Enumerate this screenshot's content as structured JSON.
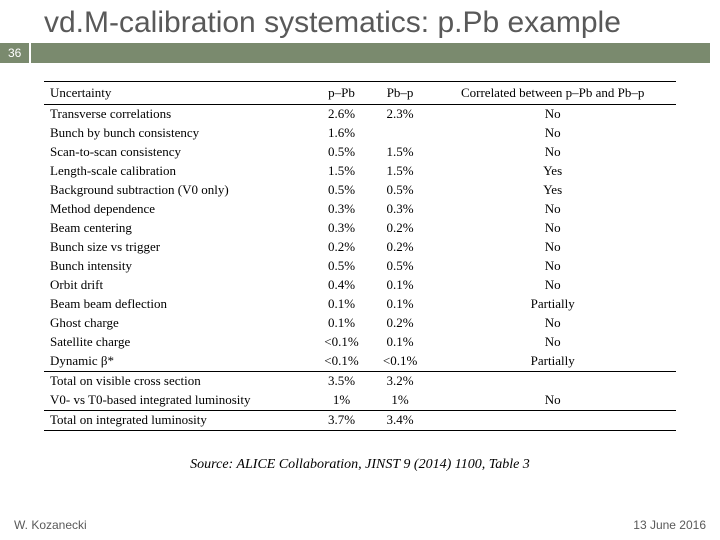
{
  "title": "vd.M-calibration systematics: p.Pb example",
  "slide_number": "36",
  "badge_bg": "#7a8a6e",
  "badge_fg": "#ffffff",
  "table": {
    "headers": [
      "Uncertainty",
      "p–Pb",
      "Pb–p",
      "Correlated between p–Pb and Pb–p"
    ],
    "rows": [
      [
        "Transverse correlations",
        "2.6%",
        "2.3%",
        "No"
      ],
      [
        "Bunch by bunch consistency",
        "1.6%",
        "",
        "No"
      ],
      [
        "Scan-to-scan consistency",
        "0.5%",
        "1.5%",
        "No"
      ],
      [
        "Length-scale calibration",
        "1.5%",
        "1.5%",
        "Yes"
      ],
      [
        "Background subtraction (V0 only)",
        "0.5%",
        "0.5%",
        "Yes"
      ],
      [
        "Method dependence",
        "0.3%",
        "0.3%",
        "No"
      ],
      [
        "Beam centering",
        "0.3%",
        "0.2%",
        "No"
      ],
      [
        "Bunch size vs trigger",
        "0.2%",
        "0.2%",
        "No"
      ],
      [
        "Bunch intensity",
        "0.5%",
        "0.5%",
        "No"
      ],
      [
        "Orbit drift",
        "0.4%",
        "0.1%",
        "No"
      ],
      [
        "Beam beam deflection",
        "0.1%",
        "0.1%",
        "Partially"
      ],
      [
        "Ghost charge",
        "0.1%",
        "0.2%",
        "No"
      ],
      [
        "Satellite charge",
        "<0.1%",
        "0.1%",
        "No"
      ],
      [
        "Dynamic β*",
        "<0.1%",
        "<0.1%",
        "Partially"
      ]
    ],
    "totals": [
      [
        "Total on visible cross section",
        "3.5%",
        "3.2%",
        ""
      ],
      [
        "V0- vs T0-based integrated luminosity",
        "1%",
        "1%",
        "No"
      ]
    ],
    "final": [
      "Total on integrated luminosity",
      "3.7%",
      "3.4%",
      ""
    ]
  },
  "source": "Source: ALICE Collaboration, JINST 9 (2014) 1100, Table 3",
  "footer_left": "W. Kozanecki",
  "footer_right": "13 June 2016"
}
